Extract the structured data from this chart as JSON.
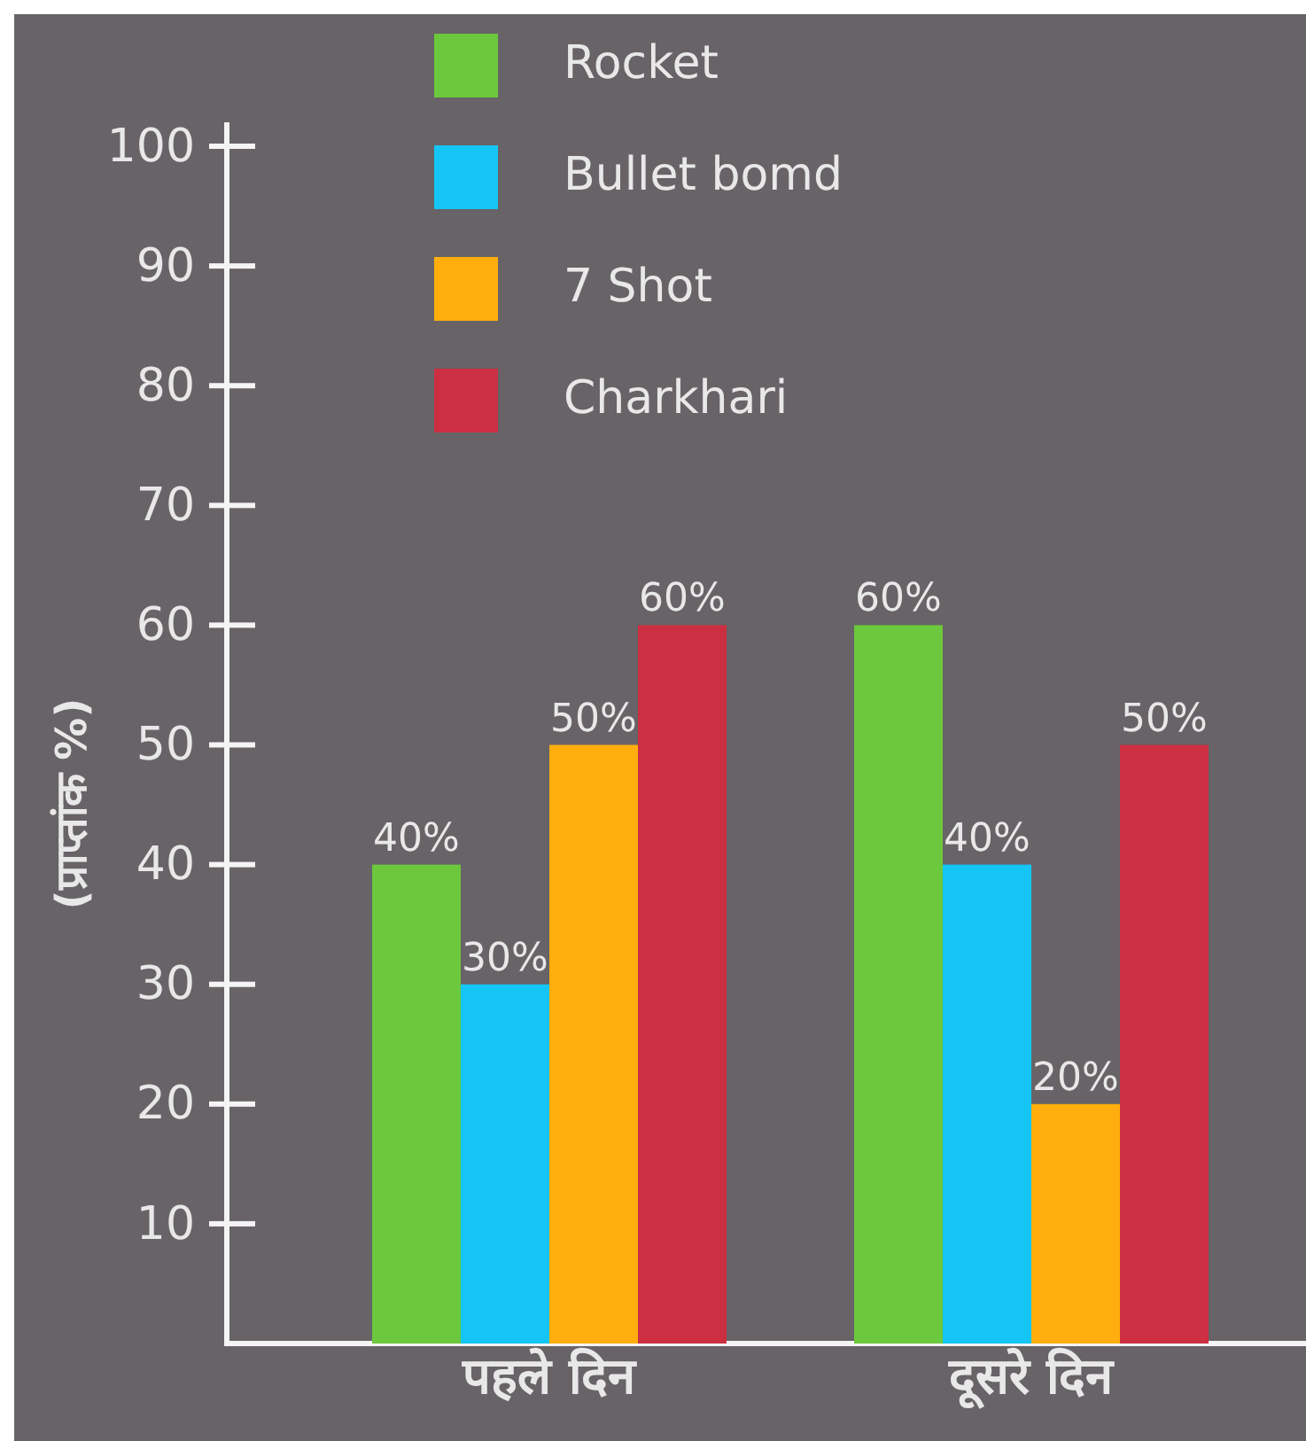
{
  "chart_data": {
    "type": "bar",
    "ylabel": "(प्राप्तांक %)",
    "categories": [
      "पहले दिन",
      "दूसरे दिन"
    ],
    "series": [
      {
        "name": "Rocket",
        "color": "#6cc83c",
        "values": [
          40,
          60
        ],
        "value_labels": [
          "40%",
          "60%"
        ]
      },
      {
        "name": "Bullet bomd",
        "color": "#14c5f5",
        "values": [
          30,
          40
        ],
        "value_labels": [
          "30%",
          "40%"
        ]
      },
      {
        "name": "7 Shot",
        "color": "#ffae0d",
        "values": [
          50,
          20
        ],
        "value_labels": [
          "50%",
          "20%"
        ]
      },
      {
        "name": "Charkhari",
        "color": "#cc2e42",
        "values": [
          60,
          50
        ],
        "value_labels": [
          "60%",
          "50%"
        ]
      }
    ],
    "ylim": [
      0,
      102
    ],
    "yticks": [
      10,
      20,
      30,
      40,
      50,
      60,
      70,
      80,
      90,
      100
    ],
    "legend": "top left"
  }
}
